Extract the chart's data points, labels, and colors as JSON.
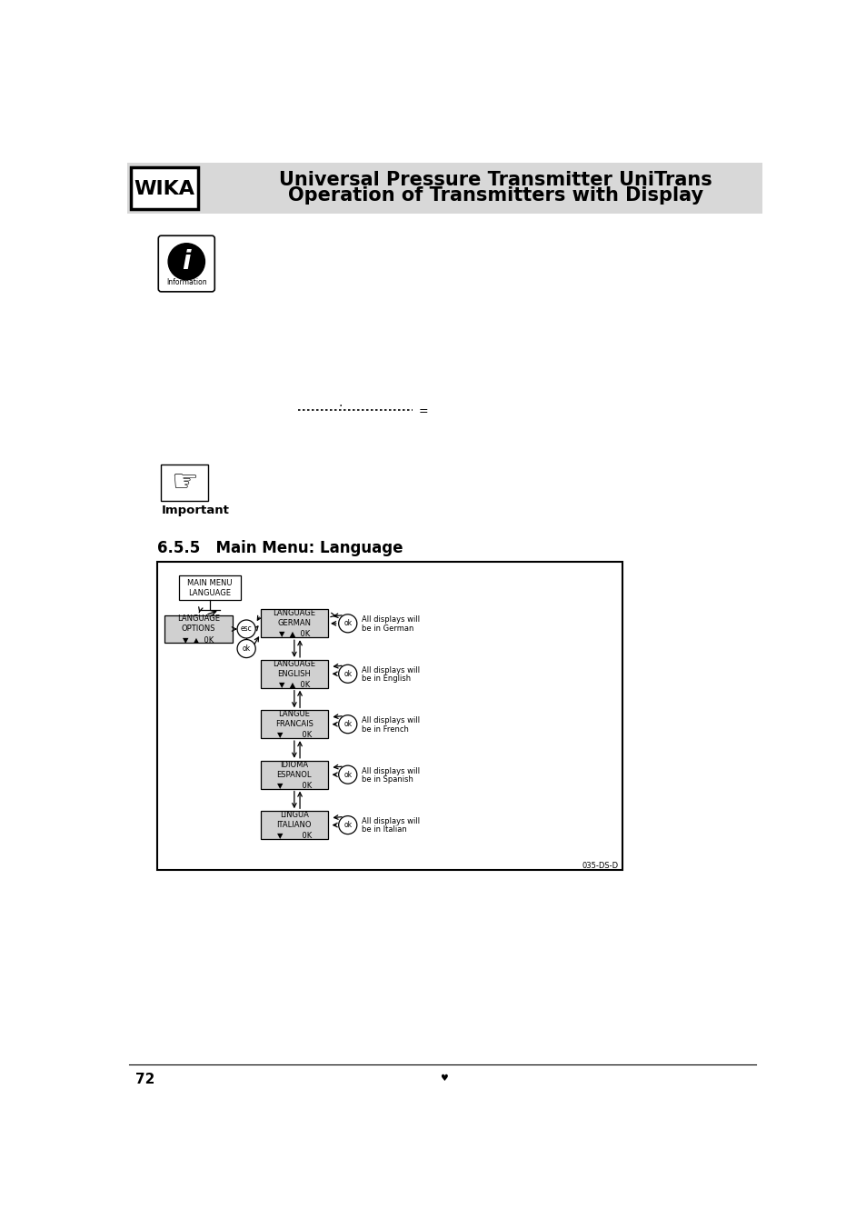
{
  "page_bg": "#ffffff",
  "header_bg": "#d8d8d8",
  "header_title_line1": "Universal Pressure Transmitter UniTrans",
  "header_title_line2": "Operation of Transmitters with Display",
  "header_title_fontsize": 15,
  "wika_label": "WIKA",
  "wika_fontsize": 16,
  "section_title": "6.5.5   Main Menu: Language",
  "section_title_fontsize": 12,
  "important_label": "Important",
  "footer_page": "72",
  "box_fill": "#d0d0d0",
  "box_fill_white": "#ffffff",
  "box_border": "#000000",
  "text_color": "#000000"
}
